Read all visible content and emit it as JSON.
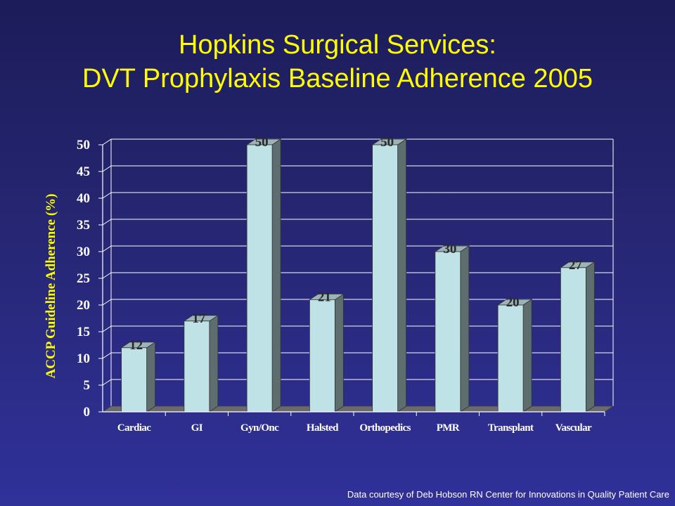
{
  "slide": {
    "title_line1": "Hopkins Surgical Services:",
    "title_line2": "DVT Prophylaxis Baseline Adherence 2005",
    "credit": "Data courtesy of Deb Hobson RN Center for Innovations in Quality Patient Care"
  },
  "chart_data": {
    "type": "bar",
    "title": "Hopkins Surgical Services: DVT Prophylaxis Baseline Adherence 2005",
    "xlabel": "",
    "ylabel": "ACCP Guideline Adherence (%)",
    "ylim": [
      0,
      50
    ],
    "yticks": [
      0,
      5,
      10,
      15,
      20,
      25,
      30,
      35,
      40,
      45,
      50
    ],
    "categories": [
      "Cardiac",
      "GI",
      "Gyn/Onc",
      "Halsted",
      "Orthopedics",
      "PMR",
      "Transplant",
      "Vascular"
    ],
    "values": [
      12,
      17,
      50,
      21,
      50,
      30,
      20,
      27
    ],
    "data_labels": true,
    "grid": true,
    "legend": "none",
    "colors": {
      "bar_front": "#bfe2e6",
      "bar_side": "#5e6e6e",
      "bar_top": "#9cb4b8",
      "floor": "#6a6a6a",
      "axis_text": "#ffffff",
      "ylabel": "#ffff00",
      "data_label": "#2a2a2a",
      "gridline": "#ffffff"
    }
  }
}
